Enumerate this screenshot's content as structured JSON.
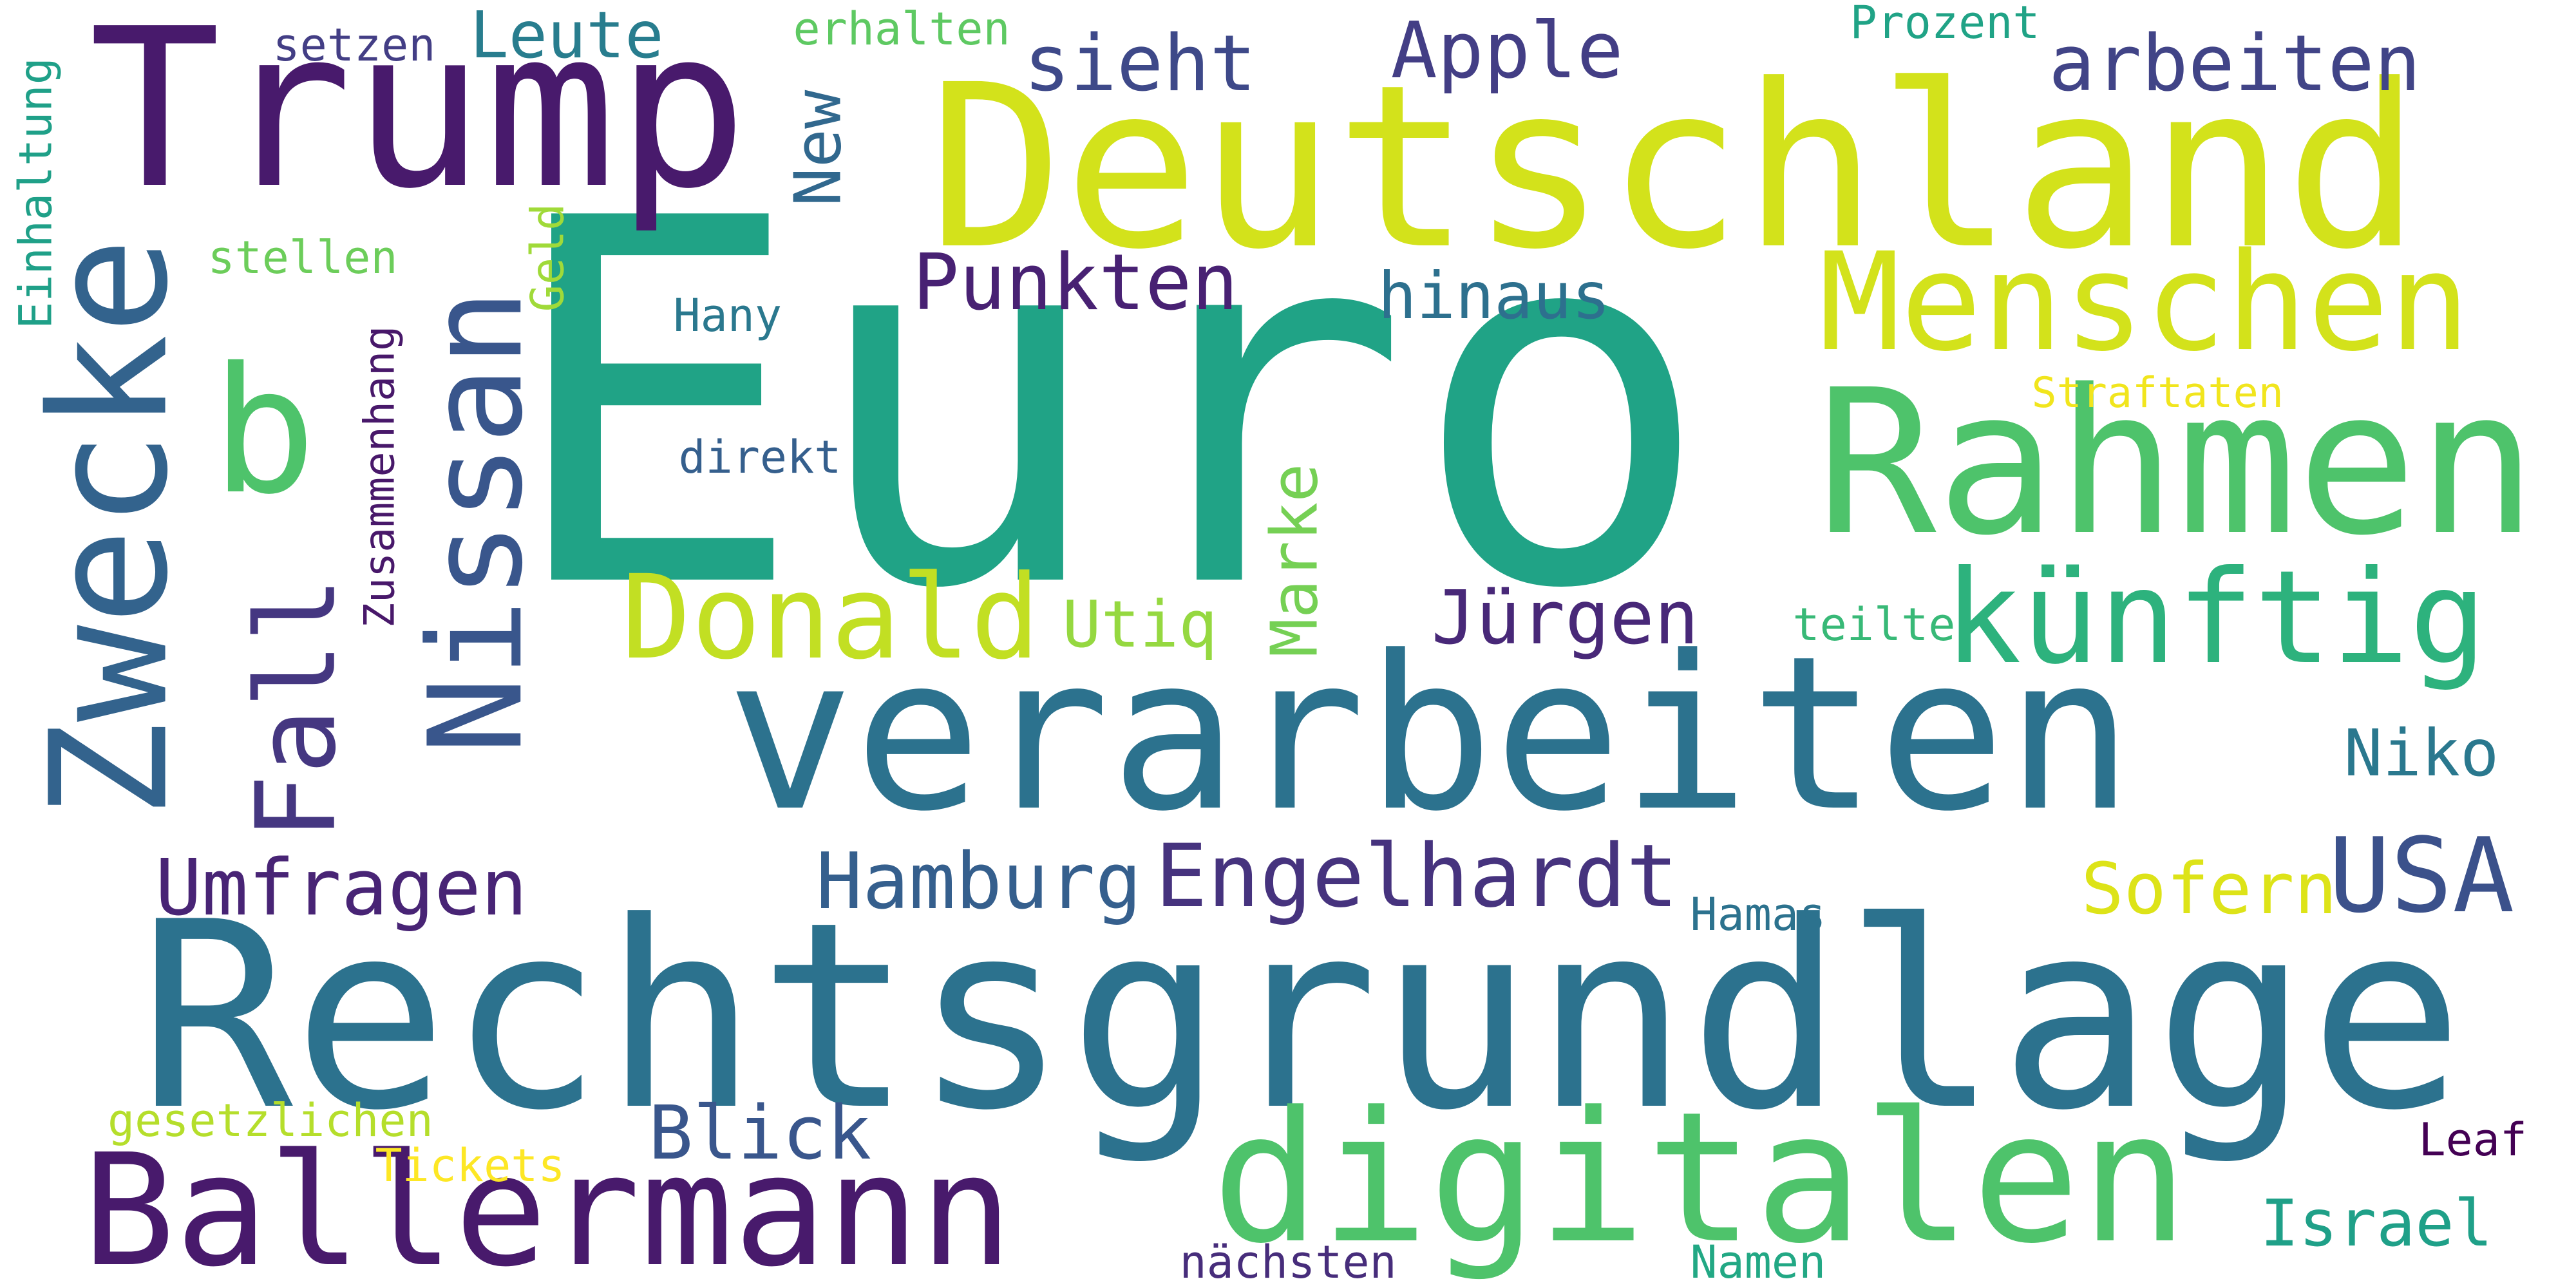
{
  "words": [
    {
      "text": "Euro",
      "color": "#20a386"
    },
    {
      "text": "Rechtsgrundlage",
      "color": "#2c728e"
    },
    {
      "text": "verarbeiten",
      "color": "#2c728e"
    },
    {
      "text": "Deutschland",
      "color": "#d3e21b"
    },
    {
      "text": "Trump",
      "color": "#481a6c"
    },
    {
      "text": "Rahmen",
      "color": "#4ec36b"
    },
    {
      "text": "Nissan",
      "color": "#39568c"
    },
    {
      "text": "Zwecke",
      "color": "#33638d"
    },
    {
      "text": "digitalen",
      "color": "#4ec36b"
    },
    {
      "text": "Ballermann",
      "color": "#481a6c"
    },
    {
      "text": "Menschen",
      "color": "#d3e21b"
    },
    {
      "text": "b",
      "color": "#4ec36b"
    },
    {
      "text": "künftig",
      "color": "#2db27d"
    },
    {
      "text": "Donald",
      "color": "#c2df23"
    },
    {
      "text": "Fall",
      "color": "#453781"
    },
    {
      "text": "USA",
      "color": "#3b518b"
    },
    {
      "text": "Engelhardt",
      "color": "#46337e"
    },
    {
      "text": "Umfragen",
      "color": "#482475"
    },
    {
      "text": "Hamburg",
      "color": "#355f8d"
    },
    {
      "text": "Blick",
      "color": "#39568c"
    },
    {
      "text": "Israel",
      "color": "#1fa088"
    },
    {
      "text": "Punkten",
      "color": "#482173"
    },
    {
      "text": "hinaus",
      "color": "#2d708e"
    },
    {
      "text": "Apple",
      "color": "#433e85"
    },
    {
      "text": "arbeiten",
      "color": "#414487"
    },
    {
      "text": "sieht",
      "color": "#3e4989"
    },
    {
      "text": "Leute",
      "color": "#287d8e"
    },
    {
      "text": "New",
      "color": "#31688e"
    },
    {
      "text": "Jürgen",
      "color": "#482878"
    },
    {
      "text": "Niko",
      "color": "#2a788e"
    },
    {
      "text": "Sofern",
      "color": "#dde318"
    },
    {
      "text": "Marke",
      "color": "#75d054"
    },
    {
      "text": "Utiq",
      "color": "#95d840"
    },
    {
      "text": "setzen",
      "color": "#433e85"
    },
    {
      "text": "erhalten",
      "color": "#5ec962"
    },
    {
      "text": "Prozent",
      "color": "#20a386"
    },
    {
      "text": "Einhaltung",
      "color": "#1fa088"
    },
    {
      "text": "stellen",
      "color": "#6ccd5a"
    },
    {
      "text": "Geld",
      "color": "#a0da39"
    },
    {
      "text": "Hany",
      "color": "#2a788e"
    },
    {
      "text": "Zusammenhang",
      "color": "#48186a"
    },
    {
      "text": "direkt",
      "color": "#355f8d"
    },
    {
      "text": "Straftaten",
      "color": "#f1e51d"
    },
    {
      "text": "teilte",
      "color": "#38b977"
    },
    {
      "text": "Hamas",
      "color": "#2c728e"
    },
    {
      "text": "Leaf",
      "color": "#440154"
    },
    {
      "text": "gesetzlichen",
      "color": "#b5de2b"
    },
    {
      "text": "Tickets",
      "color": "#fde725"
    },
    {
      "text": "nächsten",
      "color": "#472d7b"
    },
    {
      "text": "Namen",
      "color": "#22a884"
    }
  ]
}
